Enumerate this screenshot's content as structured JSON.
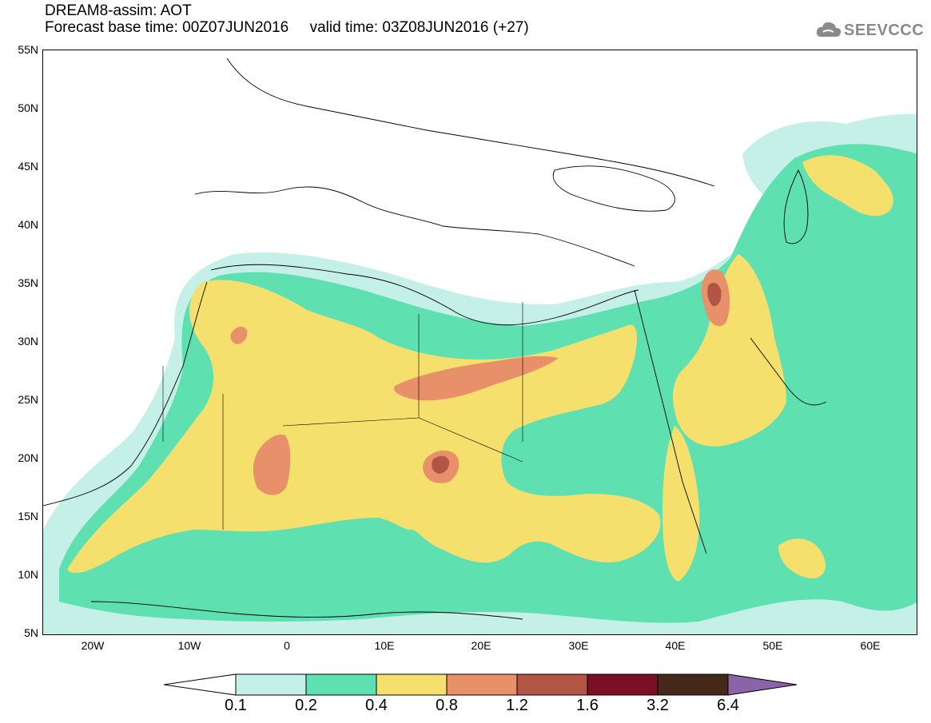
{
  "header": {
    "line1": "DREAM8-assim: AOT",
    "line2": "Forecast base time: 00Z07JUN2016     valid time: 03Z08JUN2016 (+27)"
  },
  "logo": {
    "text": "SEEVCCC",
    "icon": "cloud-icon",
    "color": "#8a8a8a"
  },
  "map": {
    "lat_range": [
      5,
      55
    ],
    "lon_range": [
      -25,
      65
    ],
    "y_ticks": [
      "55N",
      "50N",
      "45N",
      "40N",
      "35N",
      "30N",
      "25N",
      "20N",
      "15N",
      "10N",
      "5N"
    ],
    "x_ticks": [
      "20W",
      "10W",
      "0",
      "10E",
      "20E",
      "30E",
      "40E",
      "50E",
      "60E"
    ]
  },
  "legend": {
    "labels": [
      "0.1",
      "0.2",
      "0.4",
      "0.8",
      "1.2",
      "1.6",
      "3.2",
      "6.4"
    ],
    "colors": [
      "#ffffff",
      "#c5f0e8",
      "#5ee0b0",
      "#f5e06e",
      "#e8906a",
      "#b25545",
      "#7a0f25",
      "#45281a",
      "#8a63a8"
    ]
  },
  "colors": {
    "c01": "#c5f0e8",
    "c02": "#5ee0b0",
    "c04": "#f5e06e",
    "c08": "#e8906a",
    "c12": "#b25545",
    "line": "#000000"
  }
}
